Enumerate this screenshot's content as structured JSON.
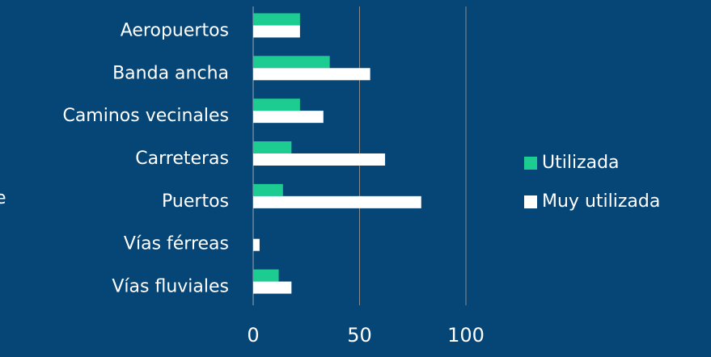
{
  "chart_data": {
    "type": "bar",
    "orientation": "horizontal",
    "y_label": "e",
    "categories": [
      "Aeropuertos",
      "Banda ancha",
      "Caminos vecinales",
      "Carreteras",
      "Puertos",
      "Vías férreas",
      "Vías fluviales"
    ],
    "series": [
      {
        "name": "Utilizada",
        "color": "#1dcc90",
        "values": [
          22,
          36,
          22,
          18,
          14,
          0,
          12
        ]
      },
      {
        "name": "Muy utilizada",
        "color": "#ffffff",
        "values": [
          22,
          55,
          33,
          62,
          79,
          3,
          18
        ]
      }
    ],
    "xlim": [
      0,
      100
    ],
    "xticks": [
      0,
      50,
      100
    ],
    "grid": true,
    "legend": "right"
  }
}
